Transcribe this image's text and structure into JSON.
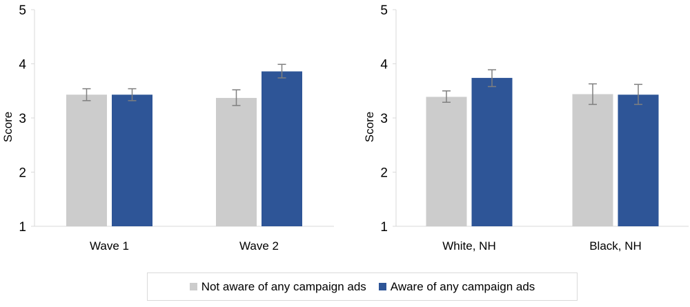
{
  "colors": {
    "not_aware": "#cccccc",
    "aware": "#2e5597",
    "error": "#7f7f7f",
    "axis": "#d9d9d9"
  },
  "legend": [
    {
      "label": "Not aware of any campaign ads",
      "color": "#cccccc"
    },
    {
      "label": "Aware of any campaign ads",
      "color": "#2e5597"
    }
  ],
  "chart_data": [
    {
      "type": "bar",
      "ylabel": "Score",
      "ylim": [
        1,
        5
      ],
      "yticks": [
        "1",
        "2",
        "3",
        "4",
        "5"
      ],
      "grid": false,
      "legend": "bottom",
      "categories": [
        "Wave 1",
        "Wave 2"
      ],
      "series": [
        {
          "name": "Not aware of any campaign ads",
          "values": [
            3.43,
            3.37
          ],
          "err_low": [
            3.32,
            3.23
          ],
          "err_high": [
            3.54,
            3.52
          ]
        },
        {
          "name": "Aware of any campaign ads",
          "values": [
            3.43,
            3.86
          ],
          "err_low": [
            3.32,
            3.74
          ],
          "err_high": [
            3.54,
            3.99
          ]
        }
      ]
    },
    {
      "type": "bar",
      "ylabel": "Score",
      "ylim": [
        1,
        5
      ],
      "yticks": [
        "1",
        "2",
        "3",
        "4",
        "5"
      ],
      "grid": false,
      "legend": "bottom",
      "categories": [
        "White, NH",
        "Black, NH"
      ],
      "series": [
        {
          "name": "Not aware of any campaign ads",
          "values": [
            3.39,
            3.44
          ],
          "err_low": [
            3.29,
            3.25
          ],
          "err_high": [
            3.5,
            3.63
          ]
        },
        {
          "name": "Aware of any campaign ads",
          "values": [
            3.74,
            3.43
          ],
          "err_low": [
            3.58,
            3.25
          ],
          "err_high": [
            3.89,
            3.62
          ]
        }
      ]
    }
  ]
}
